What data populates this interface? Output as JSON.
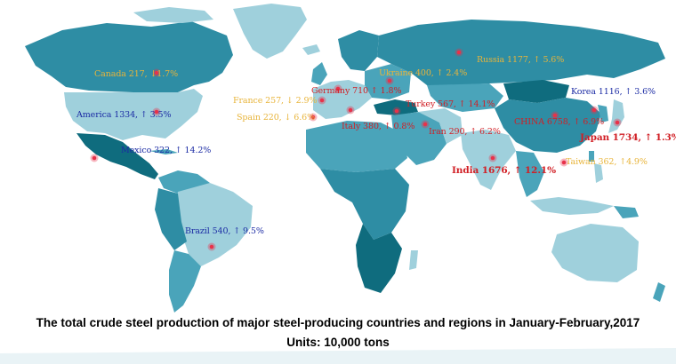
{
  "colors": {
    "ocean": "#ffffff",
    "land_light": "#9fd0dc",
    "land_mid": "#4aa4ba",
    "land_dark": "#0f6c7e",
    "marker": "#e8324a",
    "label_gold": "#e8b43a",
    "label_red": "#d11f25",
    "label_blue": "#1b2ba4"
  },
  "markers": [
    {
      "name": "canada-marker",
      "country": "Canada"
    },
    {
      "name": "america-marker",
      "country": "America"
    },
    {
      "name": "mexico-marker",
      "country": "Mexico"
    },
    {
      "name": "brazil-marker",
      "country": "Brazil"
    },
    {
      "name": "france-marker",
      "country": "France"
    },
    {
      "name": "spain-marker",
      "country": "Spain"
    },
    {
      "name": "germany-marker",
      "country": "Germany"
    },
    {
      "name": "italy-marker",
      "country": "Italy"
    },
    {
      "name": "ukraine-marker",
      "country": "Ukraine"
    },
    {
      "name": "russia-marker",
      "country": "Russia"
    },
    {
      "name": "turkey-marker",
      "country": "Turkey"
    },
    {
      "name": "iran-marker",
      "country": "Iran"
    },
    {
      "name": "india-marker",
      "country": "India"
    },
    {
      "name": "china-marker",
      "country": "CHINA"
    },
    {
      "name": "korea-marker",
      "country": "Korea"
    },
    {
      "name": "japan-marker",
      "country": "Japan"
    },
    {
      "name": "taiwan-marker",
      "country": "Taiwan"
    }
  ],
  "labels": {
    "canada": "Canada 217, ↓1.7%",
    "america": "America 1334, ↑ 3.5%",
    "mexico": "Mexico 322, ↑ 14.2%",
    "brazil": "Brazil 540, ↑ 9.5%",
    "france": "France 257, ↓ 2.9%",
    "spain": "Spain 220, ↓ 6.6%",
    "germany": "Germany 710 ↑ 1.8%",
    "italy": "Italy 380, ↑ 0.8%",
    "ukraine": "Ukraine 400, ↑ 2.4%",
    "russia": "Russia 1177, ↑ 5.6%",
    "turkey": "Turkey 567, ↑ 14.1%",
    "iran": "Iran 290, ↑ 6.2%",
    "india": "India 1676, ↑ 12.1%",
    "china": "CHINA 6758, ↑ 6.9%",
    "korea": "Korea 1116, ↑ 3.6%",
    "japan": "Japan 1734, ↑ 1.3%",
    "taiwan": "Taiwan 362, ↑4.9%"
  },
  "caption": {
    "title": "The total crude steel production of major steel-producing countries and regions in January-February,2017",
    "units": "Units: 10,000 tons"
  }
}
